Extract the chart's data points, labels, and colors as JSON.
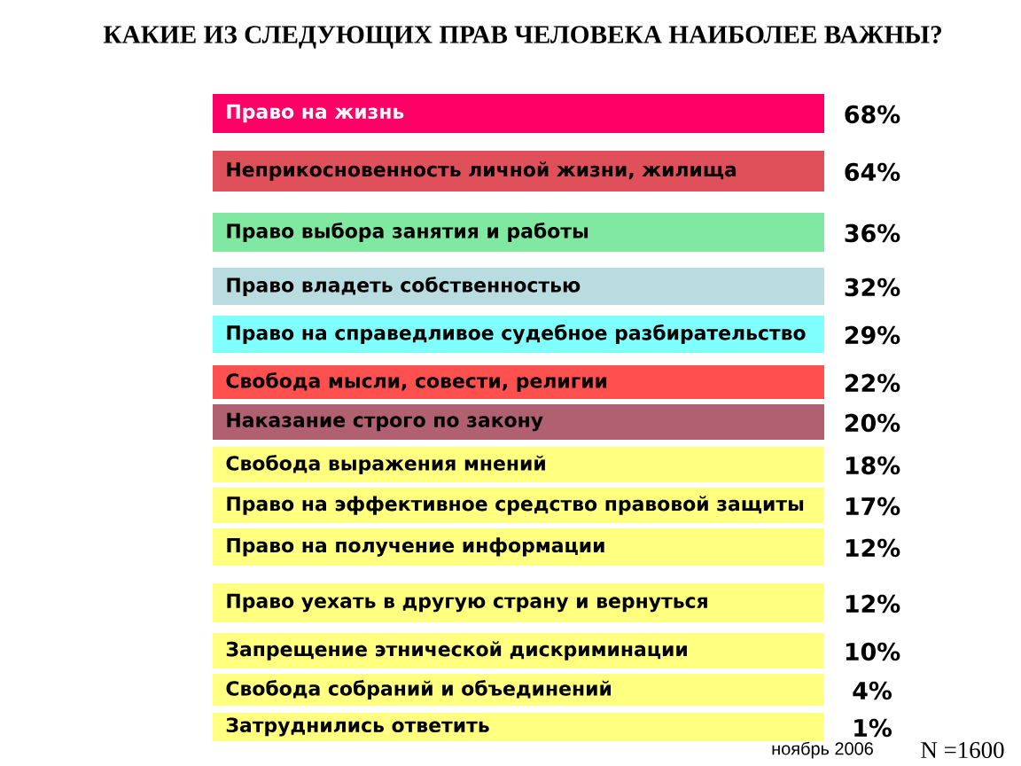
{
  "chart_data": {
    "type": "other",
    "title": "КАКИЕ ИЗ СЛЕДУЮЩИХ ПРАВ ЧЕЛОВЕКА НАИБОЛЕЕ ВАЖНЫ?",
    "categories": [
      "Право на жизнь",
      "Неприкосновенность личной жизни, жилища",
      "Право выбора занятия и работы",
      "Право владеть собственностью",
      "Право на справедливое судебное разбирательство",
      "Свобода мысли, совести, религии",
      "Наказание строго по закону",
      "Свобода выражения мнений",
      "Право на эффективное средство правовой защиты",
      "Право на получение информации",
      "Право уехать в другую страну и вернуться",
      "Запрещение этнической дискриминации",
      "Свобода собраний и объединений",
      "Затруднились ответить"
    ],
    "values": [
      68,
      64,
      36,
      32,
      29,
      22,
      20,
      18,
      17,
      12,
      12,
      10,
      4,
      1
    ],
    "value_labels": [
      "68%",
      "64%",
      "36%",
      "32%",
      "29%",
      "22%",
      "20%",
      "18%",
      "17%",
      "12%",
      "12%",
      "10%",
      "4%",
      "1%"
    ],
    "colors": [
      "#ff0066",
      "#e0505a",
      "#80e8a0",
      "#b8dce0",
      "#80ffff",
      "#ff5050",
      "#b06070",
      "#ffff80",
      "#ffff80",
      "#ffff80",
      "#ffff80",
      "#ffff80",
      "#ffff80",
      "#ffff80"
    ],
    "annotations": [
      "ноябрь 2006",
      "N =1600"
    ]
  }
}
